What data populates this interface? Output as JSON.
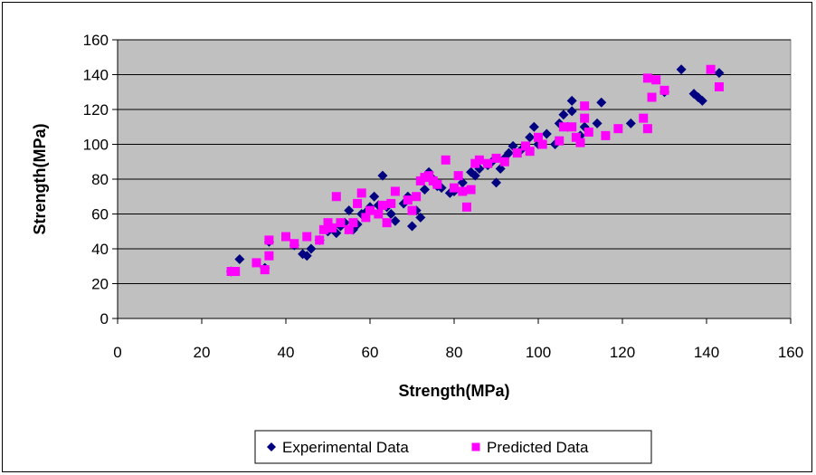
{
  "chart_data": {
    "type": "scatter",
    "title": "",
    "xlabel": "Strength(MPa)",
    "ylabel": "Strength(MPa)",
    "xlim": [
      0,
      160
    ],
    "ylim": [
      0,
      160
    ],
    "x_ticks": [
      0,
      20,
      40,
      60,
      80,
      100,
      120,
      140,
      160
    ],
    "y_ticks": [
      0,
      20,
      40,
      60,
      80,
      100,
      120,
      140,
      160
    ],
    "grid": "horizontal",
    "legend_position": "bottom",
    "plot_background": "#c0c0c0",
    "series": [
      {
        "name": "Experimental Data",
        "marker": "diamond",
        "color": "#000080",
        "points": [
          [
            27,
            27
          ],
          [
            29,
            34
          ],
          [
            35,
            29
          ],
          [
            36,
            44
          ],
          [
            42,
            42
          ],
          [
            44,
            37
          ],
          [
            45,
            36
          ],
          [
            46,
            40
          ],
          [
            48,
            45
          ],
          [
            50,
            50
          ],
          [
            51,
            52
          ],
          [
            52,
            49
          ],
          [
            53,
            53
          ],
          [
            54,
            55
          ],
          [
            55,
            62
          ],
          [
            56,
            51
          ],
          [
            57,
            54
          ],
          [
            58,
            60
          ],
          [
            59,
            61
          ],
          [
            60,
            64
          ],
          [
            61,
            70
          ],
          [
            62,
            65
          ],
          [
            63,
            82
          ],
          [
            64,
            64
          ],
          [
            65,
            60
          ],
          [
            66,
            56
          ],
          [
            68,
            66
          ],
          [
            69,
            70
          ],
          [
            70,
            53
          ],
          [
            71,
            62
          ],
          [
            72,
            58
          ],
          [
            73,
            74
          ],
          [
            74,
            84
          ],
          [
            75,
            80
          ],
          [
            76,
            76
          ],
          [
            77,
            75
          ],
          [
            79,
            72
          ],
          [
            80,
            73
          ],
          [
            82,
            78
          ],
          [
            84,
            84
          ],
          [
            85,
            82
          ],
          [
            86,
            86
          ],
          [
            88,
            88
          ],
          [
            89,
            90
          ],
          [
            90,
            78
          ],
          [
            91,
            86
          ],
          [
            92,
            92
          ],
          [
            93,
            95
          ],
          [
            94,
            99
          ],
          [
            96,
            97
          ],
          [
            98,
            104
          ],
          [
            99,
            110
          ],
          [
            100,
            100
          ],
          [
            102,
            106
          ],
          [
            104,
            100
          ],
          [
            105,
            112
          ],
          [
            106,
            117
          ],
          [
            107,
            110
          ],
          [
            108,
            125
          ],
          [
            108,
            119
          ],
          [
            110,
            105
          ],
          [
            111,
            110
          ],
          [
            114,
            112
          ],
          [
            115,
            124
          ],
          [
            122,
            112
          ],
          [
            130,
            130
          ],
          [
            134,
            143
          ],
          [
            137,
            129
          ],
          [
            138,
            127
          ],
          [
            139,
            125
          ],
          [
            143,
            141
          ]
        ]
      },
      {
        "name": "Predicted Data",
        "marker": "square",
        "color": "#ff00ff",
        "points": [
          [
            27,
            27
          ],
          [
            28,
            27
          ],
          [
            33,
            32
          ],
          [
            35,
            28
          ],
          [
            36,
            45
          ],
          [
            36,
            36
          ],
          [
            40,
            47
          ],
          [
            42,
            43
          ],
          [
            45,
            47
          ],
          [
            48,
            45
          ],
          [
            49,
            51
          ],
          [
            50,
            55
          ],
          [
            51,
            52
          ],
          [
            52,
            70
          ],
          [
            53,
            55
          ],
          [
            55,
            51
          ],
          [
            56,
            55
          ],
          [
            57,
            66
          ],
          [
            58,
            72
          ],
          [
            59,
            58
          ],
          [
            60,
            62
          ],
          [
            62,
            60
          ],
          [
            63,
            65
          ],
          [
            64,
            55
          ],
          [
            65,
            66
          ],
          [
            66,
            73
          ],
          [
            69,
            68
          ],
          [
            70,
            62
          ],
          [
            71,
            70
          ],
          [
            72,
            79
          ],
          [
            73,
            81
          ],
          [
            74,
            82
          ],
          [
            75,
            79
          ],
          [
            76,
            77
          ],
          [
            78,
            91
          ],
          [
            80,
            75
          ],
          [
            81,
            82
          ],
          [
            82,
            73
          ],
          [
            83,
            64
          ],
          [
            84,
            74
          ],
          [
            85,
            89
          ],
          [
            86,
            91
          ],
          [
            88,
            89
          ],
          [
            90,
            92
          ],
          [
            92,
            90
          ],
          [
            95,
            95
          ],
          [
            97,
            99
          ],
          [
            98,
            96
          ],
          [
            100,
            104
          ],
          [
            101,
            100
          ],
          [
            105,
            102
          ],
          [
            106,
            110
          ],
          [
            108,
            110
          ],
          [
            109,
            104
          ],
          [
            110,
            101
          ],
          [
            111,
            115
          ],
          [
            111,
            122
          ],
          [
            112,
            107
          ],
          [
            116,
            105
          ],
          [
            119,
            109
          ],
          [
            125,
            115
          ],
          [
            126,
            138
          ],
          [
            126,
            109
          ],
          [
            127,
            127
          ],
          [
            128,
            137
          ],
          [
            130,
            131
          ],
          [
            141,
            143
          ],
          [
            143,
            133
          ]
        ]
      }
    ]
  }
}
